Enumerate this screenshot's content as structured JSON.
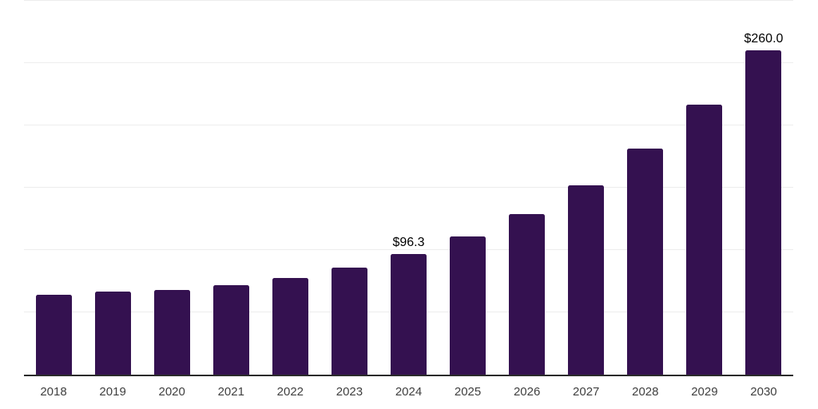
{
  "chart_data": {
    "type": "bar",
    "title": "",
    "xlabel": "",
    "ylabel": "",
    "categories": [
      "2018",
      "2019",
      "2020",
      "2021",
      "2022",
      "2023",
      "2024",
      "2025",
      "2026",
      "2027",
      "2028",
      "2029",
      "2030"
    ],
    "values": [
      64.2,
      66.3,
      68.0,
      71.5,
      77.2,
      85.7,
      96.3,
      110.7,
      128.6,
      151.6,
      180.8,
      216.4,
      260.0
    ],
    "value_labels": [
      null,
      null,
      null,
      null,
      null,
      null,
      "$96.3",
      null,
      null,
      null,
      null,
      null,
      "$260.0"
    ],
    "ylim": [
      0,
      300
    ],
    "y_gridline_interval": 50,
    "y_tick_labels_visible": false,
    "x_tick_labels_visible": true,
    "grid": "horizontal",
    "legend": "none"
  },
  "colors": {
    "background": "#ffffff",
    "bar": "#341150",
    "axis_line": "#2b2b2b",
    "gridline": "#ededed",
    "value_label_text": "#000000",
    "category_label_text": "#404040"
  }
}
